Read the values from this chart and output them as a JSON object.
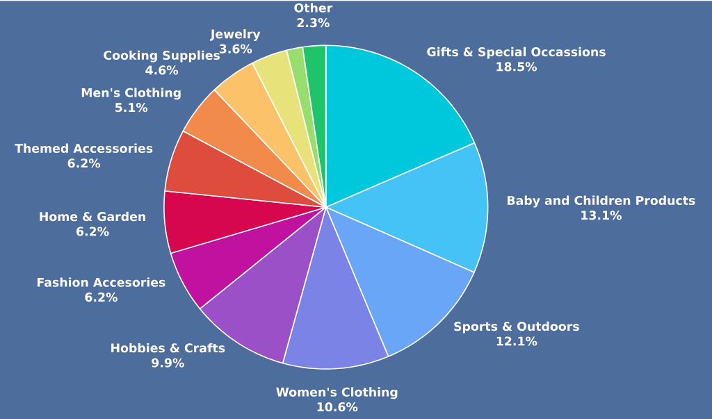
{
  "chart_data": {
    "type": "pie",
    "categories": [
      "Gifts & Special Occassions",
      "Baby and Children Products",
      "Sports & Outdoors",
      "Women's Clothing",
      "Hobbies & Crafts",
      "Fashion Accesories",
      "Home & Garden",
      "Themed Accessories",
      "Men's Clothing",
      "Cooking Supplies",
      "Jewelry",
      null,
      "Other"
    ],
    "values": [
      18.5,
      13.1,
      12.1,
      10.6,
      9.9,
      6.2,
      6.2,
      6.2,
      5.1,
      4.6,
      3.6,
      1.6,
      2.3
    ],
    "value_labels": [
      "18.5%",
      "13.1%",
      "12.1%",
      "10.6%",
      "9.9%",
      "6.2%",
      "6.2%",
      "6.2%",
      "5.1%",
      "4.6%",
      "3.6%",
      null,
      "2.3%"
    ],
    "colors": [
      "#00c8dc",
      "#45c3f7",
      "#6aa6f8",
      "#7b84e6",
      "#9b50c8",
      "#c0129e",
      "#d6074f",
      "#dd4c3c",
      "#f28a4c",
      "#fcc26a",
      "#e8e27a",
      "#98de6e",
      "#1fc46a"
    ]
  }
}
